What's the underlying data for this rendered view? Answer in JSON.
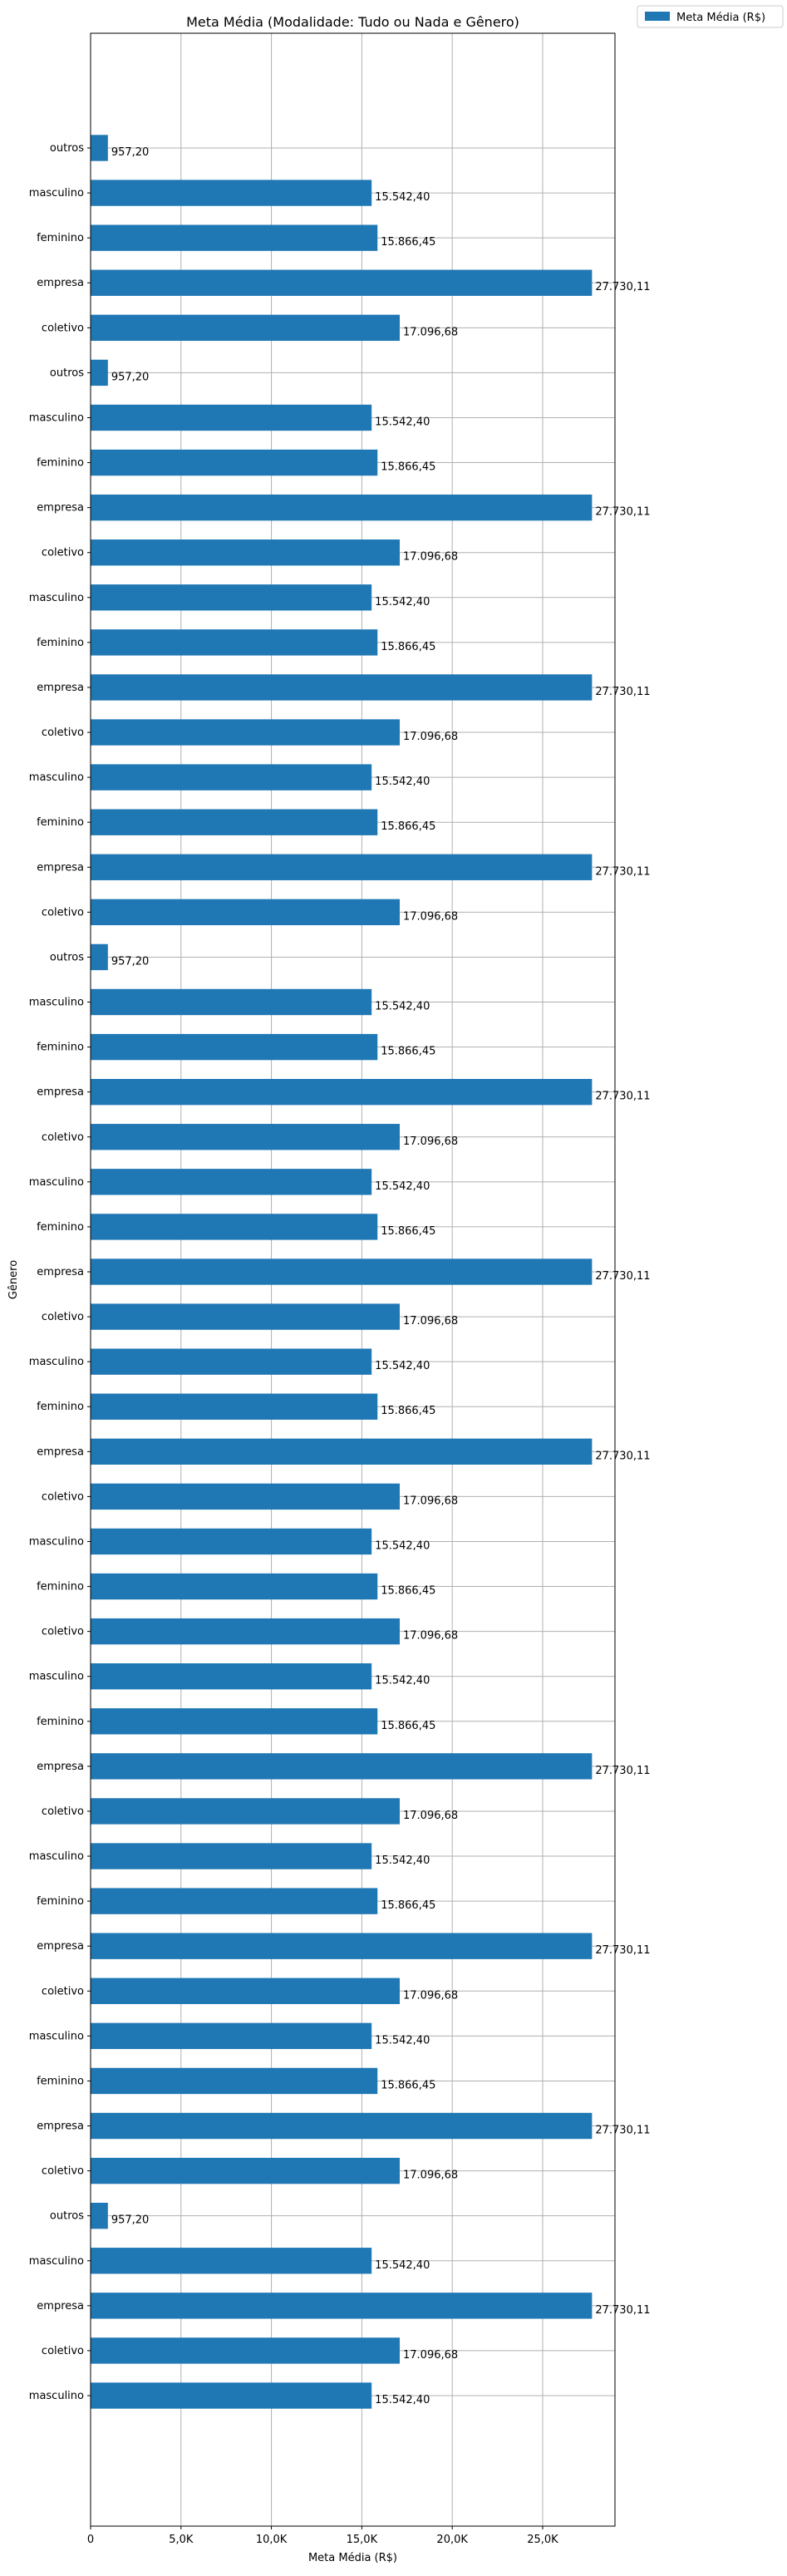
{
  "chart_data": {
    "type": "bar",
    "orientation": "horizontal",
    "title": "Meta Média (Modalidade: Tudo ou Nada e Gênero)",
    "xlabel": "Meta Média (R$)",
    "ylabel": "Gênero",
    "xlim": [
      0,
      29000
    ],
    "xticks": [
      0,
      5000,
      10000,
      15000,
      20000,
      25000
    ],
    "xtick_labels": [
      "0",
      "5,0K",
      "10,0K",
      "15,0K",
      "20,0K",
      "25,0K"
    ],
    "grid": true,
    "legend_position": "outside-top-right",
    "series": [
      {
        "name": "Meta Média (R$)",
        "color": "#1f77b4"
      }
    ],
    "categories": [
      "masculino",
      "coletivo",
      "empresa",
      "masculino",
      "outros",
      "coletivo",
      "empresa",
      "feminino",
      "masculino",
      "coletivo",
      "empresa",
      "feminino",
      "masculino",
      "coletivo",
      "empresa",
      "feminino",
      "masculino",
      "coletivo",
      "feminino",
      "masculino",
      "coletivo",
      "empresa",
      "feminino",
      "masculino",
      "coletivo",
      "empresa",
      "feminino",
      "masculino",
      "coletivo",
      "empresa",
      "feminino",
      "masculino",
      "outros",
      "coletivo",
      "empresa",
      "feminino",
      "masculino",
      "coletivo",
      "empresa",
      "feminino",
      "masculino",
      "coletivo",
      "empresa",
      "feminino",
      "masculino",
      "outros",
      "coletivo",
      "empresa",
      "feminino",
      "masculino",
      "outros"
    ],
    "values": [
      15542.4,
      17096.68,
      27730.11,
      15542.4,
      957.2,
      17096.68,
      27730.11,
      15866.45,
      15542.4,
      17096.68,
      27730.11,
      15866.45,
      15542.4,
      17096.68,
      27730.11,
      15866.45,
      15542.4,
      17096.68,
      15866.45,
      15542.4,
      17096.68,
      27730.11,
      15866.45,
      15542.4,
      17096.68,
      27730.11,
      15866.45,
      15542.4,
      17096.68,
      27730.11,
      15866.45,
      15542.4,
      957.2,
      17096.68,
      27730.11,
      15866.45,
      15542.4,
      17096.68,
      27730.11,
      15866.45,
      15542.4,
      17096.68,
      27730.11,
      15866.45,
      15542.4,
      957.2,
      17096.68,
      27730.11,
      15866.45,
      15542.4,
      957.2
    ],
    "data_labels": [
      "15.542,40",
      "17.096,68",
      "27.730,11",
      "15.542,40",
      "957,20",
      "17.096,68",
      "27.730,11",
      "15.866,45",
      "15.542,40",
      "17.096,68",
      "27.730,11",
      "15.866,45",
      "15.542,40",
      "17.096,68",
      "27.730,11",
      "15.866,45",
      "15.542,40",
      "17.096,68",
      "15.866,45",
      "15.542,40",
      "17.096,68",
      "27.730,11",
      "15.866,45",
      "15.542,40",
      "17.096,68",
      "27.730,11",
      "15.866,45",
      "15.542,40",
      "17.096,68",
      "27.730,11",
      "15.866,45",
      "15.542,40",
      "957,20",
      "17.096,68",
      "27.730,11",
      "15.866,45",
      "15.542,40",
      "17.096,68",
      "27.730,11",
      "15.866,45",
      "15.542,40",
      "17.096,68",
      "27.730,11",
      "15.866,45",
      "15.542,40",
      "957,20",
      "17.096,68",
      "27.730,11",
      "15.866,45",
      "15.542,40",
      "957,20"
    ]
  }
}
